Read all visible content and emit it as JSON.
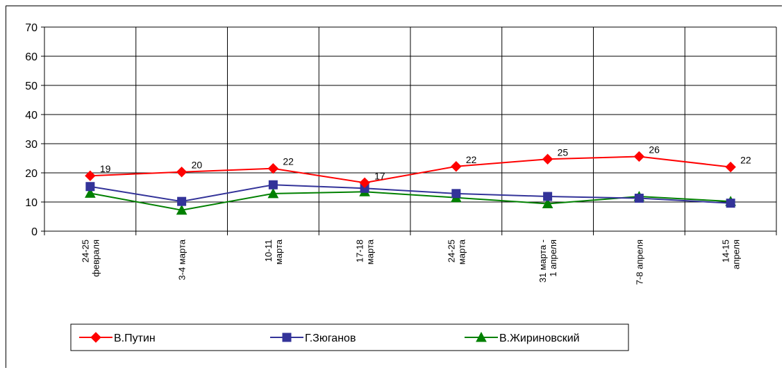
{
  "chart_data": {
    "type": "line",
    "title": "",
    "xlabel": "",
    "ylabel": "",
    "ylim": [
      0,
      70
    ],
    "yticks": [
      0,
      10,
      20,
      30,
      40,
      50,
      60,
      70
    ],
    "grid": true,
    "legend_position": "bottom",
    "categories": [
      [
        "24-25",
        "февраля"
      ],
      [
        "3-4 марта"
      ],
      [
        "10-11",
        "марта"
      ],
      [
        "17-18",
        "марта"
      ],
      [
        "24-25",
        "марта"
      ],
      [
        "31 марта -",
        "1 апреля"
      ],
      [
        "7-8 апреля"
      ],
      [
        "14-15",
        "апреля"
      ]
    ],
    "series": [
      {
        "name": "В.Путин",
        "color": "#ff0000",
        "marker": "diamond",
        "values": [
          19,
          20.3,
          21.5,
          16.6,
          22.2,
          24.7,
          25.6,
          22
        ],
        "data_labels": [
          "19",
          "20",
          "22",
          "17",
          "22",
          "25",
          "26",
          "22"
        ]
      },
      {
        "name": "Г.Зюганов",
        "color": "#333399",
        "marker": "square",
        "values": [
          15.3,
          10.2,
          15.9,
          14.7,
          12.9,
          11.9,
          11.3,
          9.6
        ]
      },
      {
        "name": "В.Жириновский",
        "color": "#008000",
        "marker": "triangle",
        "values": [
          13,
          7.2,
          12.9,
          13.5,
          11.5,
          9.4,
          11.9,
          10.2
        ]
      }
    ]
  }
}
